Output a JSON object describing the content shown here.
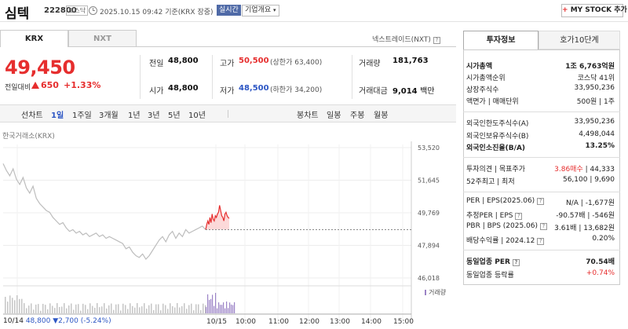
{
  "header": {
    "stock_name": "심텍",
    "stock_code": "222800",
    "market": "코스닥",
    "datetime": "2025.10.15 09:42",
    "basis": "기준(KRX 장중)",
    "realtime_label": "실시간",
    "company_overview_label": "기업개요",
    "mystock_label": "MY STOCK 추가"
  },
  "tabs": {
    "krx": "KRX",
    "nxt": "NXT",
    "nxt_tradable": "넥스트레이드(NXT)"
  },
  "quote": {
    "price": "49,450",
    "change_label": "전일대비",
    "change_amount": "650",
    "change_rate": "+1.33%",
    "prev_close_label": "전일",
    "prev_close": "48,800",
    "open_label": "시가",
    "open": "48,800",
    "high_label": "고가",
    "high": "50,500",
    "upper_limit": "(상한가 63,400)",
    "low_label": "저가",
    "low": "48,500",
    "lower_limit": "(하한가 34,200)",
    "volume_label": "거래량",
    "volume": "181,763",
    "amount_label": "거래대금",
    "amount": "9,014",
    "amount_unit": "백만"
  },
  "toolbar": {
    "line_chart_label": "선차트",
    "periods": [
      "1일",
      "1주일",
      "3개월",
      "1년",
      "3년",
      "5년",
      "10년"
    ],
    "candle_label": "봉차트",
    "candles": [
      "일봉",
      "주봉",
      "월봉"
    ]
  },
  "chart_data": {
    "type": "line",
    "source_label": "한국거래소(KRX)",
    "y_ticks": [
      "53,520",
      "51,645",
      "49,769",
      "47,894",
      "46,018"
    ],
    "ylim": [
      46018,
      53520
    ],
    "x_ticks": [
      "10/14",
      "10/15",
      "10:00",
      "11:00",
      "12:00",
      "13:00",
      "14:00",
      "15:00"
    ],
    "prev_close": 48800,
    "series": [
      {
        "values": [
          52600,
          52200,
          51900,
          52300,
          51700,
          51400,
          51800,
          51200,
          50900,
          51300,
          50600,
          50300,
          50100,
          49900,
          49800,
          49500,
          49300,
          49100,
          49200,
          48900,
          48700,
          48800,
          48600,
          48700,
          48500,
          48600,
          48400,
          48500,
          48600,
          48400,
          48500,
          48300,
          48400,
          48300,
          48200,
          48100,
          48000,
          47700,
          47800,
          47500,
          47300,
          47200,
          47400,
          47100,
          47300,
          47600,
          47900,
          48200,
          48400,
          48100,
          48500,
          48700,
          48300,
          48600,
          48400,
          48800,
          48600,
          48700,
          48800,
          48900,
          49000,
          48800
        ]
      },
      {
        "values": [
          48800,
          49100,
          49300,
          49100,
          49500,
          49200,
          49700,
          49400,
          49300,
          49600,
          49500,
          49700,
          49800,
          50200,
          49900,
          49600,
          49500,
          49300,
          49700,
          49800,
          49600,
          49500,
          49450
        ]
      }
    ],
    "volume_label": "거래량"
  },
  "footer": {
    "date": "10/14",
    "close": "48,800",
    "change": "2,700",
    "rate": "(-5.24%)"
  },
  "right_tabs": {
    "invest_info": "투자정보",
    "quote10": "호가10단계"
  },
  "invest": {
    "market_cap_label": "시가총액",
    "market_cap": "1조 6,763억원",
    "market_cap_rank_label": "시가총액순위",
    "market_cap_rank": "코스닥 41위",
    "listed_shares_label": "상장주식수",
    "listed_shares": "33,950,236",
    "face_value_label": "액면가 | 매매단위",
    "face_value": "500원 | 1주",
    "foreign_limit_label": "외국인한도주식수(A)",
    "foreign_limit": "33,950,236",
    "foreign_hold_label": "외국인보유주식수(B)",
    "foreign_hold": "4,498,044",
    "foreign_ratio_label": "외국인소진율(B/A)",
    "foreign_ratio": "13.25%",
    "opinion_label": "투자의견 | 목표주가",
    "opinion": "3.86매수",
    "target": "44,333",
    "w52_label": "52주최고 | 최저",
    "w52_high": "56,100",
    "w52_low": "9,690",
    "per_label": "PER | EPS(2025.06)",
    "per": "N/A",
    "eps": "-1,677원",
    "est_per_label": "추정PER | EPS",
    "est_per": "-90.57배",
    "est_eps": "-546원",
    "pbr_label": "PBR | BPS (2025.06)",
    "pbr": "3.61배",
    "bps": "13,682원",
    "div_label": "배당수익률 | 2024.12",
    "div": "0.20%",
    "sector_per_label": "동일업종 PER",
    "sector_per": "70.54배",
    "sector_change_label": "동일업종 등락률",
    "sector_change": "+0.74%"
  }
}
